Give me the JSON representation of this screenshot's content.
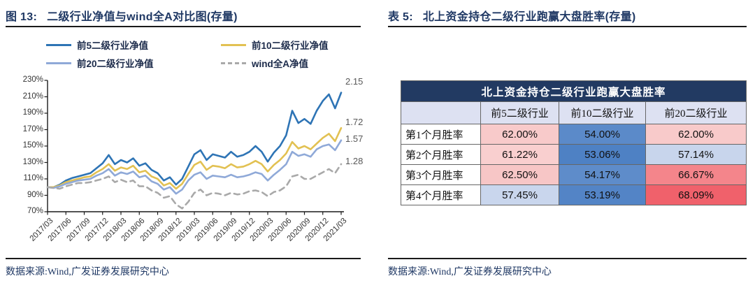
{
  "colors": {
    "navy": "#1f3864",
    "table_header_bg": "#223a62",
    "table_subheader_bg": "#dde1f2",
    "axis": "#1a1a1a",
    "tick_text": "#333333",
    "end_label_text": "#595959"
  },
  "left_panel": {
    "title_prefix": "图 13:",
    "title": "二级行业净值与wind全A对比图(存量)",
    "source": "数据来源:Wind,广发证券发展研究中心",
    "chart_data": {
      "type": "line",
      "title": "二级行业净值与wind全A对比图(存量)",
      "ylim": [
        70,
        230
      ],
      "y_ticks": [
        "230%",
        "210%",
        "190%",
        "170%",
        "150%",
        "130%",
        "110%",
        "90%",
        "70%"
      ],
      "y_tick_values": [
        230,
        210,
        190,
        170,
        150,
        130,
        110,
        90,
        70
      ],
      "x_tick_labels": [
        "2017/03",
        "2017/06",
        "2017/09",
        "2017/12",
        "2018/03",
        "2018/06",
        "2018/09",
        "2018/12",
        "2019/03",
        "2019/06",
        "2019/09",
        "2019/12",
        "2020/03",
        "2020/06",
        "2020/09",
        "2020/12",
        "2021/03"
      ],
      "x_unit": "month",
      "grid": false,
      "legend_position": "top",
      "series": [
        {
          "name": "前5二级行业净值",
          "color": "#2e74b5",
          "dashed": false,
          "end_label": "2.15",
          "values": [
            100,
            100,
            103,
            108,
            111,
            113,
            115,
            117,
            123,
            129,
            139,
            128,
            133,
            130,
            135,
            126,
            129,
            121,
            117,
            108,
            112,
            103,
            110,
            125,
            140,
            145,
            133,
            140,
            138,
            136,
            143,
            137,
            139,
            143,
            150,
            143,
            131,
            142,
            150,
            163,
            193,
            178,
            183,
            177,
            193,
            205,
            213,
            196,
            215
          ]
        },
        {
          "name": "前10二级行业净值",
          "color": "#e2c152",
          "dashed": false,
          "end_label": "1.72",
          "values": [
            100,
            100,
            102,
            106,
            108,
            110,
            112,
            113,
            118,
            122,
            128,
            120,
            124,
            122,
            126,
            118,
            120,
            113,
            110,
            102,
            105,
            98,
            104,
            116,
            127,
            131,
            121,
            126,
            125,
            123,
            128,
            124,
            125,
            128,
            132,
            128,
            119,
            127,
            133,
            141,
            155,
            147,
            150,
            146,
            153,
            160,
            165,
            156,
            172
          ]
        },
        {
          "name": "前20二级行业净值",
          "color": "#8fa9d8",
          "dashed": false,
          "end_label": "1.57",
          "values": [
            100,
            99,
            101,
            104,
            106,
            108,
            109,
            110,
            114,
            117,
            122,
            114,
            118,
            116,
            119,
            112,
            114,
            107,
            104,
            97,
            100,
            92,
            97,
            108,
            115,
            118,
            110,
            114,
            113,
            112,
            115,
            112,
            113,
            115,
            118,
            116,
            108,
            115,
            121,
            128,
            143,
            138,
            140,
            137,
            146,
            150,
            152,
            145,
            157
          ]
        },
        {
          "name": "wind全A净值",
          "color": "#a9a9a9",
          "dashed": true,
          "end_label": "1.28",
          "values": [
            100,
            99,
            98,
            101,
            103,
            105,
            105,
            106,
            108,
            110,
            113,
            106,
            109,
            106,
            108,
            101,
            101,
            96,
            93,
            87,
            89,
            79,
            74,
            82,
            93,
            97,
            90,
            93,
            92,
            90,
            93,
            91,
            92,
            95,
            96,
            94,
            89,
            94,
            96,
            101,
            113,
            115,
            110,
            110,
            114,
            118,
            122,
            117,
            128
          ]
        }
      ]
    }
  },
  "right_panel": {
    "title_prefix": "表 5:",
    "title": "北上资金持仓二级行业跑赢大盘胜率(存量)",
    "source": "数据来源:Wind,广发证券发展研究中心",
    "table": {
      "banner": "北上资金持仓二级行业跑赢大盘胜率",
      "columns": [
        "",
        "前5二级行业",
        "前10二级行业",
        "前20二级行业"
      ],
      "rows": [
        {
          "label": "第1个月胜率",
          "cells": [
            {
              "text": "62.00%",
              "bg": "#f8caca"
            },
            {
              "text": "54.00%",
              "bg": "#5b8ac9"
            },
            {
              "text": "62.00%",
              "bg": "#f8caca"
            }
          ]
        },
        {
          "label": "第2个月胜率",
          "cells": [
            {
              "text": "61.22%",
              "bg": "#f9cfcf"
            },
            {
              "text": "53.06%",
              "bg": "#4e81c4"
            },
            {
              "text": "57.14%",
              "bg": "#c8d5ec"
            }
          ]
        },
        {
          "label": "第3个月胜率",
          "cells": [
            {
              "text": "62.50%",
              "bg": "#f7c6c6"
            },
            {
              "text": "54.17%",
              "bg": "#5e8cca"
            },
            {
              "text": "66.67%",
              "bg": "#f4858b"
            }
          ]
        },
        {
          "label": "第4个月胜率",
          "cells": [
            {
              "text": "57.45%",
              "bg": "#c9d6ed"
            },
            {
              "text": "53.19%",
              "bg": "#5384c6"
            },
            {
              "text": "68.09%",
              "bg": "#f0616b"
            }
          ]
        }
      ]
    }
  }
}
